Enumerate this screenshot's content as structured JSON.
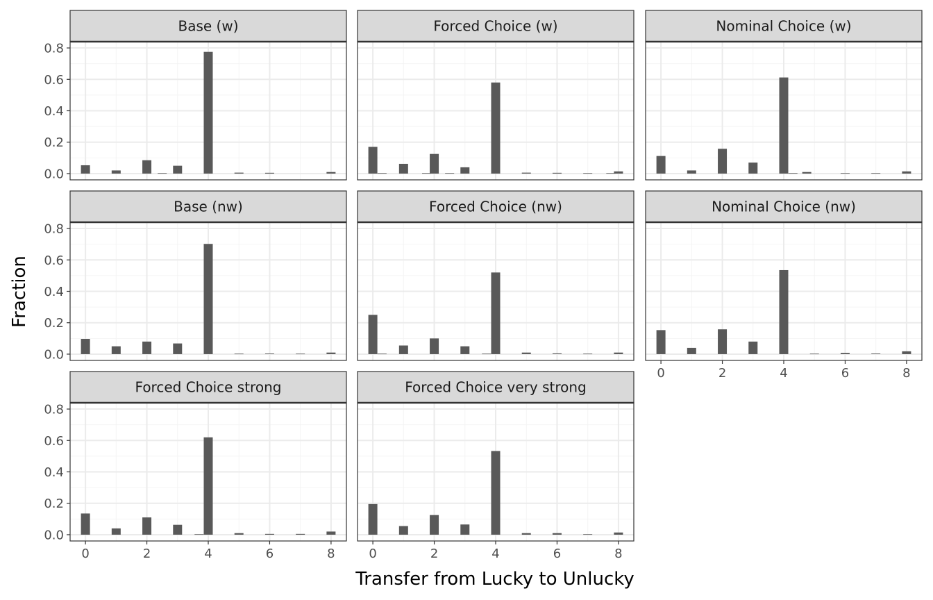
{
  "chart_data": {
    "type": "bar",
    "xlabel": "Transfer from Lucky to Unlucky",
    "ylabel": "Fraction",
    "xlim": [
      -0.5,
      8.5
    ],
    "ylim": [
      -0.04,
      0.84
    ],
    "x_ticks": [
      0,
      2,
      4,
      6,
      8
    ],
    "y_ticks": [
      0.0,
      0.2,
      0.4,
      0.6,
      0.8
    ],
    "grid": true,
    "colors": {
      "bar": "#595959",
      "strip": "#d9d9d9",
      "grid_major": "#ebebeb",
      "grid_minor": "#f4f4f4",
      "panel_border": "#333333"
    },
    "panels": [
      {
        "title": "Base (w)",
        "bars": [
          {
            "x": 0,
            "y": 0.053
          },
          {
            "x": 1,
            "y": 0.02
          },
          {
            "x": 2,
            "y": 0.085
          },
          {
            "x": 2.5,
            "y": 0.003
          },
          {
            "x": 3,
            "y": 0.05
          },
          {
            "x": 4,
            "y": 0.775
          },
          {
            "x": 5,
            "y": 0.006
          },
          {
            "x": 6,
            "y": 0.005
          },
          {
            "x": 8,
            "y": 0.01
          }
        ]
      },
      {
        "title": "Forced Choice (w)",
        "bars": [
          {
            "x": 0,
            "y": 0.17
          },
          {
            "x": 0.3,
            "y": 0.003
          },
          {
            "x": 1,
            "y": 0.062
          },
          {
            "x": 1.75,
            "y": 0.003
          },
          {
            "x": 2,
            "y": 0.125
          },
          {
            "x": 2.5,
            "y": 0.003
          },
          {
            "x": 3,
            "y": 0.04
          },
          {
            "x": 4,
            "y": 0.58
          },
          {
            "x": 5,
            "y": 0.006
          },
          {
            "x": 6,
            "y": 0.005
          },
          {
            "x": 7,
            "y": 0.003
          },
          {
            "x": 7.75,
            "y": 0.003
          },
          {
            "x": 8,
            "y": 0.014
          }
        ]
      },
      {
        "title": "Nominal Choice (w)",
        "bars": [
          {
            "x": 0,
            "y": 0.112
          },
          {
            "x": 1,
            "y": 0.02
          },
          {
            "x": 2,
            "y": 0.158
          },
          {
            "x": 3,
            "y": 0.07
          },
          {
            "x": 4,
            "y": 0.612
          },
          {
            "x": 4.3,
            "y": 0.003
          },
          {
            "x": 4.75,
            "y": 0.01
          },
          {
            "x": 6,
            "y": 0.003
          },
          {
            "x": 7,
            "y": 0.003
          },
          {
            "x": 8,
            "y": 0.014
          }
        ]
      },
      {
        "title": "Base (nw)",
        "bars": [
          {
            "x": 0,
            "y": 0.097
          },
          {
            "x": 1,
            "y": 0.05
          },
          {
            "x": 2,
            "y": 0.08
          },
          {
            "x": 3,
            "y": 0.068
          },
          {
            "x": 4,
            "y": 0.702
          },
          {
            "x": 5,
            "y": 0.003
          },
          {
            "x": 6,
            "y": 0.004
          },
          {
            "x": 7,
            "y": 0.003
          },
          {
            "x": 8,
            "y": 0.01
          }
        ]
      },
      {
        "title": "Forced Choice (nw)",
        "bars": [
          {
            "x": 0,
            "y": 0.25
          },
          {
            "x": 0.3,
            "y": 0.003
          },
          {
            "x": 1,
            "y": 0.055
          },
          {
            "x": 2,
            "y": 0.1
          },
          {
            "x": 3,
            "y": 0.05
          },
          {
            "x": 3.7,
            "y": 0.003
          },
          {
            "x": 4,
            "y": 0.52
          },
          {
            "x": 5,
            "y": 0.01
          },
          {
            "x": 6,
            "y": 0.005
          },
          {
            "x": 7,
            "y": 0.003
          },
          {
            "x": 8,
            "y": 0.01
          }
        ]
      },
      {
        "title": "Nominal Choice (nw)",
        "bars": [
          {
            "x": 0,
            "y": 0.153
          },
          {
            "x": 1,
            "y": 0.04
          },
          {
            "x": 2,
            "y": 0.158
          },
          {
            "x": 3,
            "y": 0.08
          },
          {
            "x": 4,
            "y": 0.535
          },
          {
            "x": 5,
            "y": 0.003
          },
          {
            "x": 6,
            "y": 0.008
          },
          {
            "x": 7,
            "y": 0.004
          },
          {
            "x": 8,
            "y": 0.018
          }
        ]
      },
      {
        "title": "Forced Choice strong",
        "bars": [
          {
            "x": 0,
            "y": 0.135
          },
          {
            "x": 1,
            "y": 0.04
          },
          {
            "x": 2,
            "y": 0.11
          },
          {
            "x": 3,
            "y": 0.063
          },
          {
            "x": 3.7,
            "y": 0.003
          },
          {
            "x": 4,
            "y": 0.62
          },
          {
            "x": 5,
            "y": 0.01
          },
          {
            "x": 6,
            "y": 0.005
          },
          {
            "x": 7,
            "y": 0.005
          },
          {
            "x": 8,
            "y": 0.02
          }
        ]
      },
      {
        "title": "Forced Choice very strong",
        "bars": [
          {
            "x": 0,
            "y": 0.195
          },
          {
            "x": 1,
            "y": 0.055
          },
          {
            "x": 2,
            "y": 0.125
          },
          {
            "x": 3,
            "y": 0.065
          },
          {
            "x": 4,
            "y": 0.533
          },
          {
            "x": 5,
            "y": 0.01
          },
          {
            "x": 6,
            "y": 0.01
          },
          {
            "x": 7,
            "y": 0.003
          },
          {
            "x": 8,
            "y": 0.014
          }
        ]
      }
    ]
  }
}
